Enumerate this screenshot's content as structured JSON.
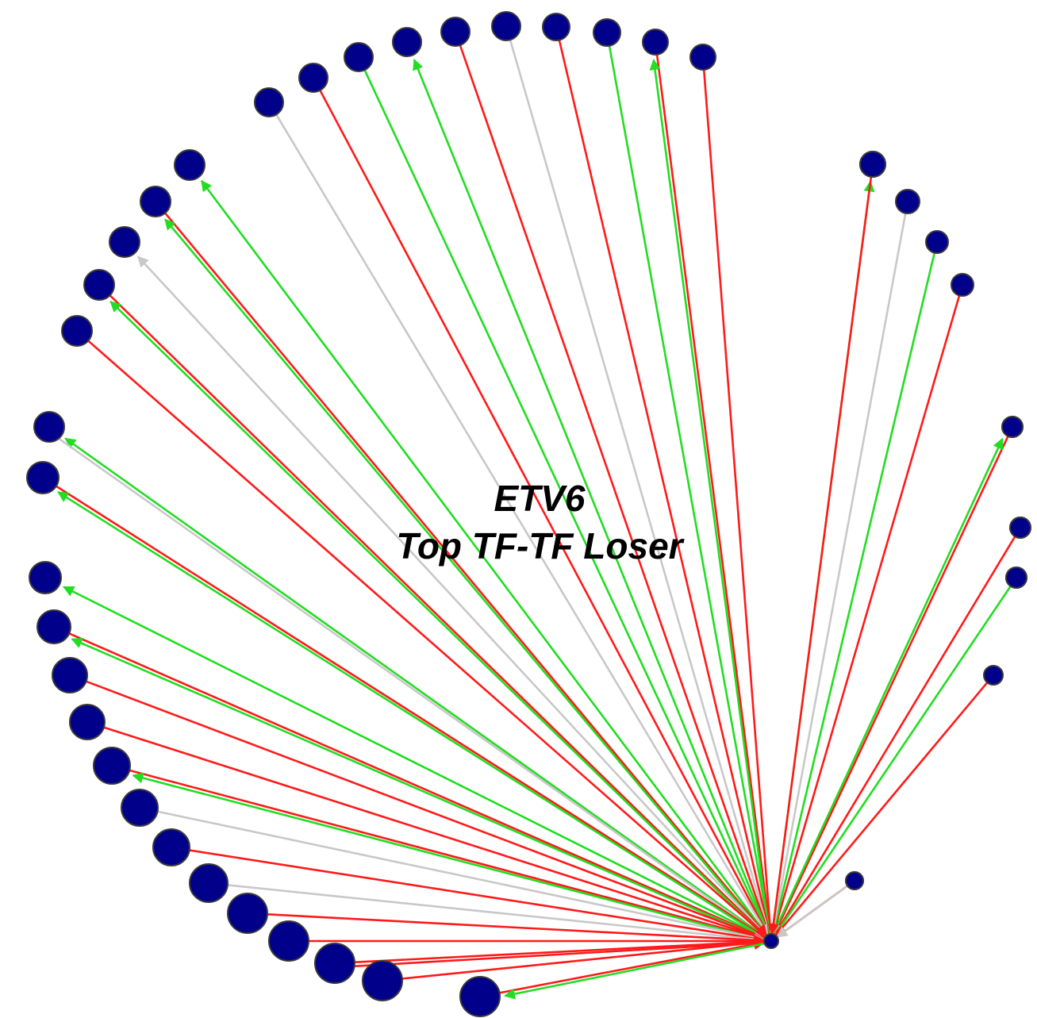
{
  "title": {
    "line1": "ETV6",
    "line2": "Top TF-TF Loser"
  },
  "colors": {
    "node_fill": "#00008b",
    "node_stroke": "#3a3a3a",
    "repressed": "#ff1a1a",
    "activated": "#22dd22",
    "neutral": "#c8c8c8",
    "hub_fill": "#8b0000"
  },
  "graph": {
    "hub": {
      "id": "hub"
    },
    "nodes": [
      {
        "id": "n1"
      },
      {
        "id": "n2"
      },
      {
        "id": "n3"
      },
      {
        "id": "n4"
      },
      {
        "id": "n5"
      },
      {
        "id": "n6"
      },
      {
        "id": "n7"
      },
      {
        "id": "n8"
      },
      {
        "id": "n9"
      },
      {
        "id": "n10"
      },
      {
        "id": "n11"
      },
      {
        "id": "n12"
      },
      {
        "id": "n13"
      },
      {
        "id": "n14"
      },
      {
        "id": "n15"
      },
      {
        "id": "n16"
      },
      {
        "id": "n17"
      },
      {
        "id": "n18"
      },
      {
        "id": "n19"
      },
      {
        "id": "n20"
      },
      {
        "id": "n21"
      },
      {
        "id": "n22"
      },
      {
        "id": "n23"
      },
      {
        "id": "n24"
      },
      {
        "id": "n25"
      },
      {
        "id": "n26"
      },
      {
        "id": "n27"
      },
      {
        "id": "n28"
      },
      {
        "id": "n29"
      },
      {
        "id": "n30"
      },
      {
        "id": "n31"
      },
      {
        "id": "n32"
      },
      {
        "id": "n33"
      },
      {
        "id": "n34"
      },
      {
        "id": "n35"
      },
      {
        "id": "n36"
      },
      {
        "id": "n37"
      },
      {
        "id": "n38"
      },
      {
        "id": "n39"
      },
      {
        "id": "n40"
      },
      {
        "id": "n41"
      },
      {
        "id": "n42"
      },
      {
        "id": "n43"
      },
      {
        "id": "n44"
      }
    ],
    "edges": [
      {
        "node": "n1",
        "type": "repressed",
        "arrow": "to_hub"
      },
      {
        "node": "n1",
        "type": "activated",
        "arrow": "to_node"
      },
      {
        "node": "n2",
        "type": "repressed",
        "arrow": "to_hub"
      },
      {
        "node": "n3",
        "type": "activated",
        "arrow": "to_hub"
      },
      {
        "node": "n4",
        "type": "repressed",
        "arrow": "to_hub"
      },
      {
        "node": "n5",
        "type": "repressed",
        "arrow": "to_hub"
      },
      {
        "node": "n6",
        "type": "activated",
        "arrow": "to_hub"
      },
      {
        "node": "n7",
        "type": "neutral",
        "arrow": "to_hub"
      },
      {
        "node": "n8",
        "type": "activated",
        "arrow": "to_node"
      },
      {
        "node": "n9",
        "type": "repressed",
        "arrow": "to_hub"
      },
      {
        "node": "n10",
        "type": "repressed",
        "arrow": "to_hub"
      },
      {
        "node": "n10",
        "type": "activated",
        "arrow": "to_node"
      },
      {
        "node": "n11",
        "type": "activated",
        "arrow": "to_hub"
      },
      {
        "node": "n12",
        "type": "repressed",
        "arrow": "to_hub"
      },
      {
        "node": "n13",
        "type": "neutral",
        "arrow": "to_hub"
      },
      {
        "node": "n14",
        "type": "repressed",
        "arrow": "to_hub"
      },
      {
        "node": "n15",
        "type": "activated",
        "arrow": "to_node"
      },
      {
        "node": "n16",
        "type": "activated",
        "arrow": "to_hub"
      },
      {
        "node": "n17",
        "type": "repressed",
        "arrow": "to_hub"
      },
      {
        "node": "n18",
        "type": "neutral",
        "arrow": "to_hub"
      },
      {
        "node": "n19",
        "type": "activated",
        "arrow": "to_node"
      },
      {
        "node": "n20",
        "type": "repressed",
        "arrow": "to_hub"
      },
      {
        "node": "n20",
        "type": "activated",
        "arrow": "to_node"
      },
      {
        "node": "n21",
        "type": "neutral",
        "arrow": "to_node"
      },
      {
        "node": "n22",
        "type": "repressed",
        "arrow": "to_hub"
      },
      {
        "node": "n22",
        "type": "activated",
        "arrow": "to_node"
      },
      {
        "node": "n23",
        "type": "repressed",
        "arrow": "to_hub"
      },
      {
        "node": "n24",
        "type": "activated",
        "arrow": "to_node"
      },
      {
        "node": "n24",
        "type": "neutral",
        "arrow": "to_hub"
      },
      {
        "node": "n25",
        "type": "repressed",
        "arrow": "to_hub"
      },
      {
        "node": "n25",
        "type": "activated",
        "arrow": "to_node"
      },
      {
        "node": "n26",
        "type": "activated",
        "arrow": "to_node"
      },
      {
        "node": "n27",
        "type": "repressed",
        "arrow": "to_hub"
      },
      {
        "node": "n27",
        "type": "activated",
        "arrow": "to_node"
      },
      {
        "node": "n28",
        "type": "repressed",
        "arrow": "to_hub"
      },
      {
        "node": "n29",
        "type": "repressed",
        "arrow": "to_hub"
      },
      {
        "node": "n30",
        "type": "repressed",
        "arrow": "to_hub"
      },
      {
        "node": "n30",
        "type": "activated",
        "arrow": "to_node"
      },
      {
        "node": "n31",
        "type": "neutral",
        "arrow": "to_hub"
      },
      {
        "node": "n32",
        "type": "repressed",
        "arrow": "to_hub"
      },
      {
        "node": "n33",
        "type": "neutral",
        "arrow": "to_hub"
      },
      {
        "node": "n34",
        "type": "repressed",
        "arrow": "to_hub"
      },
      {
        "node": "n35",
        "type": "repressed",
        "arrow": "to_hub"
      },
      {
        "node": "n36",
        "type": "repressed",
        "arrow": "to_hub"
      },
      {
        "node": "n36",
        "type": "repressed",
        "arrow": "to_hub"
      },
      {
        "node": "n37",
        "type": "repressed",
        "arrow": "to_hub"
      },
      {
        "node": "n38",
        "type": "repressed",
        "arrow": "to_hub"
      },
      {
        "node": "n38",
        "type": "activated",
        "arrow": "to_node"
      },
      {
        "node": "n39",
        "type": "repressed",
        "arrow": "to_hub"
      },
      {
        "node": "n40",
        "type": "repressed",
        "arrow": "to_hub"
      },
      {
        "node": "n41",
        "type": "neutral",
        "arrow": "to_hub"
      }
    ]
  }
}
